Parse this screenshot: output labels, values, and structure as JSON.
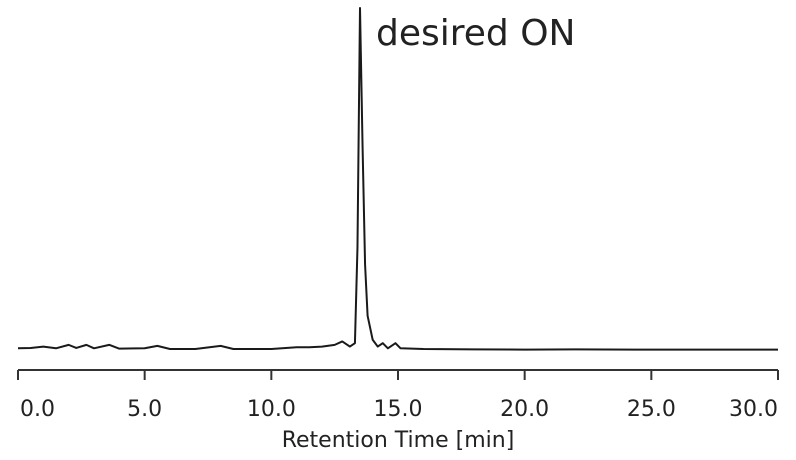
{
  "chart_data": {
    "type": "line",
    "annotation": "desired ON",
    "xlabel": "Retention Time [min]",
    "xlim": [
      0,
      30
    ],
    "ylim": [
      0,
      100
    ],
    "xticks": [
      {
        "value": 0,
        "label": "0.0"
      },
      {
        "value": 5,
        "label": "5.0"
      },
      {
        "value": 10,
        "label": "10.0"
      },
      {
        "value": 15,
        "label": "15.0"
      },
      {
        "value": 20,
        "label": "20.0"
      },
      {
        "value": 25,
        "label": "25.0"
      },
      {
        "value": 30,
        "label": "30.0"
      }
    ],
    "color": "#1a1a1a",
    "x": [
      0,
      0.5,
      1,
      1.5,
      2,
      2.3,
      2.7,
      3,
      3.6,
      4,
      5,
      5.5,
      6,
      7,
      8,
      8.5,
      10,
      11,
      11.5,
      12,
      12.5,
      12.8,
      13.1,
      13.3,
      13.4,
      13.5,
      13.6,
      13.7,
      13.8,
      14.0,
      14.2,
      14.4,
      14.6,
      14.9,
      15.1,
      16,
      18,
      20,
      22,
      25,
      30
    ],
    "values": [
      0.5,
      0.6,
      1,
      0.5,
      1.5,
      0.6,
      1.5,
      0.5,
      1.5,
      0.4,
      0.5,
      1.2,
      0.3,
      0.3,
      1.2,
      0.3,
      0.3,
      0.8,
      0.8,
      1.0,
      1.5,
      2.5,
      1.0,
      2,
      30,
      100,
      60,
      25,
      10,
      3,
      1,
      2,
      0.5,
      2,
      0.5,
      0.3,
      0.2,
      0.1,
      0.2,
      0.1,
      0.1
    ]
  }
}
